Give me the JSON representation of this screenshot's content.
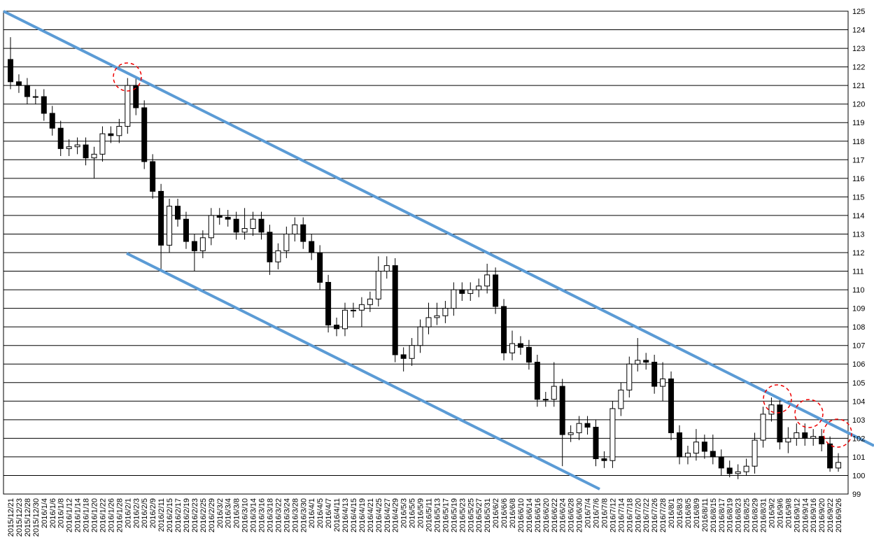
{
  "chart_data": {
    "type": "candlestick",
    "categories": [
      "2015/12/21",
      "2015/12/23",
      "2015/12/28",
      "2015/12/30",
      "2016/1/4",
      "2016/1/6",
      "2016/1/8",
      "2016/1/12",
      "2016/1/14",
      "2016/1/18",
      "2016/1/20",
      "2016/1/22",
      "2016/1/26",
      "2016/1/28",
      "2016/2/1",
      "2016/2/3",
      "2016/2/5",
      "2016/2/9",
      "2016/2/11",
      "2016/2/15",
      "2016/2/17",
      "2016/2/19",
      "2016/2/23",
      "2016/2/25",
      "2016/2/29",
      "2016/3/2",
      "2016/3/4",
      "2016/3/8",
      "2016/3/10",
      "2016/3/14",
      "2016/3/16",
      "2016/3/18",
      "2016/3/22",
      "2016/3/24",
      "2016/3/28",
      "2016/3/30",
      "2016/4/1",
      "2016/4/5",
      "2016/4/7",
      "2016/4/11",
      "2016/4/13",
      "2016/4/15",
      "2016/4/19",
      "2016/4/21",
      "2016/4/25",
      "2016/4/27",
      "2016/4/29",
      "2016/5/3",
      "2016/5/5",
      "2016/5/9",
      "2016/5/11",
      "2016/5/13",
      "2016/5/17",
      "2016/5/19",
      "2016/5/23",
      "2016/5/25",
      "2016/5/27",
      "2016/5/31",
      "2016/6/2",
      "2016/6/6",
      "2016/6/8",
      "2016/6/10",
      "2016/6/14",
      "2016/6/16",
      "2016/6/20",
      "2016/6/22",
      "2016/6/24",
      "2016/6/28",
      "2016/6/30",
      "2016/7/4",
      "2016/7/6",
      "2016/7/8",
      "2016/7/12",
      "2016/7/14",
      "2016/7/18",
      "2016/7/20",
      "2016/7/22",
      "2016/7/26",
      "2016/7/28",
      "2016/8/1",
      "2016/8/3",
      "2016/8/5",
      "2016/8/9",
      "2016/8/11",
      "2016/8/15",
      "2016/8/17",
      "2016/8/19",
      "2016/8/23",
      "2016/8/25",
      "2016/8/29",
      "2016/8/31",
      "2016/9/2",
      "2016/9/6",
      "2016/9/8",
      "2016/9/12",
      "2016/9/14",
      "2016/9/16",
      "2016/9/20",
      "2016/9/22",
      "2016/9/26"
    ],
    "open": [
      122.4,
      121.2,
      121.0,
      120.4,
      120.4,
      119.5,
      118.7,
      117.6,
      117.7,
      117.8,
      117.1,
      117.3,
      118.4,
      118.3,
      118.8,
      121.0,
      119.8,
      116.9,
      115.3,
      112.4,
      114.5,
      113.8,
      112.6,
      112.1,
      112.8,
      114.0,
      113.9,
      113.8,
      113.1,
      113.3,
      113.8,
      113.1,
      111.5,
      112.1,
      113.0,
      113.5,
      112.6,
      112.0,
      110.4,
      108.1,
      107.9,
      108.9,
      108.9,
      109.2,
      109.5,
      111.0,
      111.3,
      106.5,
      106.3,
      107.0,
      108.0,
      108.5,
      108.6,
      109.0,
      110.0,
      109.8,
      110.0,
      110.2,
      110.8,
      109.1,
      106.6,
      107.1,
      106.9,
      106.1,
      104.1,
      104.1,
      104.8,
      102.2,
      102.3,
      102.8,
      102.6,
      100.9,
      100.8,
      103.6,
      104.6,
      106.0,
      106.2,
      106.1,
      104.8,
      105.2,
      102.3,
      101.0,
      101.2,
      101.8,
      101.3,
      101.0,
      100.4,
      100.1,
      100.2,
      100.5,
      101.9,
      103.3,
      103.8,
      101.8,
      102.0,
      102.3,
      102.0,
      102.1,
      101.7,
      100.4
    ],
    "high": [
      123.6,
      121.6,
      121.4,
      120.8,
      120.8,
      119.9,
      119.1,
      118.1,
      118.2,
      118.2,
      117.7,
      118.8,
      118.8,
      119.2,
      121.4,
      121.4,
      120.2,
      117.3,
      115.7,
      114.9,
      114.9,
      114.2,
      113.0,
      113.2,
      114.4,
      114.4,
      114.3,
      114.2,
      114.4,
      114.2,
      114.2,
      113.5,
      112.5,
      113.4,
      113.9,
      113.9,
      113.0,
      112.4,
      110.8,
      108.5,
      109.3,
      109.3,
      109.6,
      109.9,
      111.8,
      111.8,
      111.7,
      106.9,
      107.4,
      108.4,
      109.3,
      109.3,
      109.4,
      110.4,
      110.4,
      110.4,
      110.6,
      111.4,
      111.2,
      109.5,
      107.8,
      107.5,
      107.3,
      106.5,
      104.5,
      106.1,
      105.2,
      102.7,
      103.2,
      103.2,
      103.0,
      101.3,
      104.0,
      105.0,
      106.4,
      107.4,
      106.6,
      106.5,
      106.1,
      105.6,
      102.7,
      101.6,
      102.5,
      102.2,
      102.2,
      101.4,
      100.8,
      100.6,
      100.9,
      102.3,
      103.7,
      104.2,
      104.2,
      102.6,
      102.8,
      102.8,
      102.5,
      102.5,
      102.1,
      101.2
    ],
    "low": [
      120.8,
      120.6,
      120.0,
      120.0,
      119.1,
      118.3,
      117.2,
      117.2,
      117.3,
      116.7,
      116.0,
      116.9,
      117.9,
      117.9,
      118.4,
      119.4,
      116.5,
      114.9,
      111.0,
      112.0,
      113.4,
      112.2,
      111.0,
      111.7,
      112.4,
      113.5,
      113.4,
      112.7,
      112.7,
      112.9,
      112.7,
      110.8,
      111.1,
      111.7,
      112.6,
      112.2,
      111.6,
      110.0,
      107.7,
      107.5,
      107.5,
      108.5,
      108.0,
      108.8,
      109.1,
      110.6,
      106.1,
      105.6,
      105.9,
      106.6,
      107.6,
      108.1,
      108.2,
      108.6,
      109.4,
      109.4,
      109.6,
      109.8,
      108.7,
      106.2,
      106.2,
      106.5,
      105.7,
      103.7,
      103.7,
      103.7,
      100.5,
      101.8,
      101.9,
      102.2,
      100.5,
      100.4,
      100.4,
      103.2,
      104.2,
      105.6,
      105.7,
      104.4,
      104.0,
      101.9,
      100.6,
      100.6,
      100.8,
      100.9,
      100.6,
      100.0,
      99.9,
      99.8,
      100.0,
      100.1,
      101.5,
      102.9,
      101.4,
      101.2,
      101.6,
      101.6,
      101.6,
      101.3,
      100.2,
      100.2
    ],
    "close": [
      121.2,
      121.0,
      120.4,
      120.4,
      119.5,
      118.7,
      117.6,
      117.7,
      117.8,
      117.1,
      117.3,
      118.4,
      118.3,
      118.8,
      121.0,
      119.8,
      116.9,
      115.3,
      112.4,
      114.5,
      113.8,
      112.6,
      112.1,
      112.8,
      114.0,
      113.9,
      113.8,
      113.1,
      113.3,
      113.8,
      113.1,
      111.5,
      112.1,
      113.0,
      113.5,
      112.6,
      112.0,
      110.4,
      108.1,
      107.9,
      108.9,
      108.9,
      109.2,
      109.5,
      111.0,
      111.3,
      106.5,
      106.3,
      107.0,
      108.0,
      108.5,
      108.6,
      109.0,
      110.0,
      109.8,
      110.0,
      110.2,
      110.8,
      109.1,
      106.6,
      107.1,
      106.9,
      106.1,
      104.1,
      104.1,
      104.8,
      102.2,
      102.3,
      102.8,
      102.6,
      100.9,
      100.8,
      103.6,
      104.6,
      106.0,
      106.2,
      106.1,
      104.8,
      105.2,
      102.3,
      101.0,
      101.2,
      101.8,
      101.3,
      101.0,
      100.4,
      100.1,
      100.2,
      100.5,
      101.9,
      103.3,
      103.8,
      101.8,
      102.0,
      102.3,
      102.0,
      102.1,
      101.7,
      100.4,
      100.7
    ],
    "up_color": "#ffffff",
    "down_color": "#000000",
    "ylim": [
      99,
      125
    ],
    "yticks": [
      99,
      100,
      101,
      102,
      103,
      104,
      105,
      106,
      107,
      108,
      109,
      110,
      111,
      112,
      113,
      114,
      115,
      116,
      117,
      118,
      119,
      120,
      121,
      122,
      123,
      124,
      125
    ],
    "grid": true
  }
}
